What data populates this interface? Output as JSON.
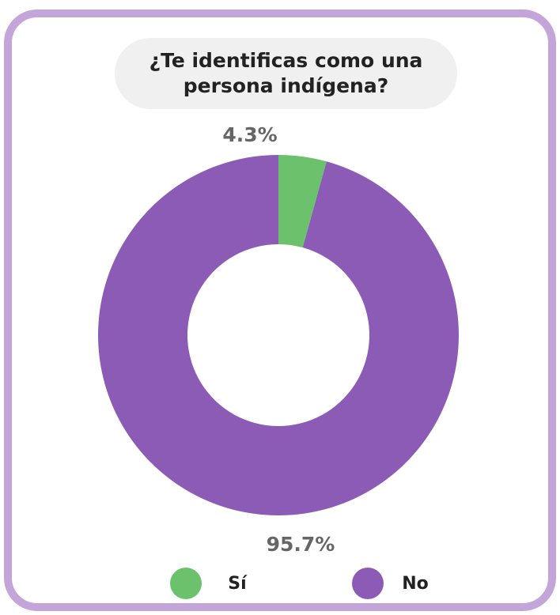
{
  "chart_data": {
    "type": "donut",
    "title": "¿Te identificas como una persona indígena?",
    "categories": [
      "Sí",
      "No"
    ],
    "values": [
      4.3,
      95.7
    ],
    "value_labels": [
      "4.3%",
      "95.7%"
    ],
    "colors": [
      "#6cc26c",
      "#8b5bb5"
    ]
  }
}
